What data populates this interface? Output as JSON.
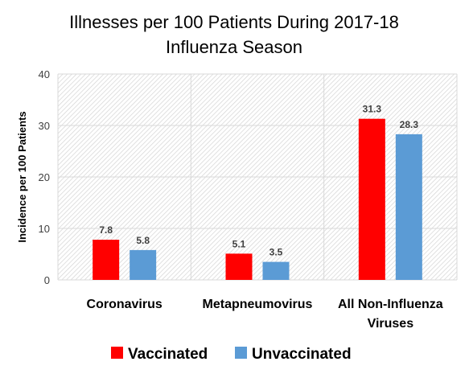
{
  "chart_data": {
    "type": "bar",
    "title_lines": [
      "Illnesses per 100 Patients During 2017-18",
      "Influenza Season"
    ],
    "ylabel": "Incidence per 100 Patients",
    "ylim": [
      0,
      40
    ],
    "yticks": [
      "0",
      "10",
      "20",
      "30",
      "40"
    ],
    "ytick_values": [
      0,
      10,
      20,
      30,
      40
    ],
    "grid": true,
    "legend_position": "bottom",
    "categories": [
      "Coronavirus",
      "Metapneumovirus",
      "All Non-Influenza Viruses"
    ],
    "category_lines": [
      [
        "Coronavirus"
      ],
      [
        "Metapneumovirus"
      ],
      [
        "All Non-Influenza",
        "Viruses"
      ]
    ],
    "series": [
      {
        "name": "Vaccinated",
        "color": "#ff0000",
        "values": [
          7.8,
          5.1,
          31.3
        ],
        "labels": [
          "7.8",
          "5.1",
          "31.3"
        ]
      },
      {
        "name": "Unvaccinated",
        "color": "#5b9bd5",
        "values": [
          5.8,
          3.5,
          28.3
        ],
        "labels": [
          "5.8",
          "3.5",
          "28.3"
        ]
      }
    ]
  }
}
